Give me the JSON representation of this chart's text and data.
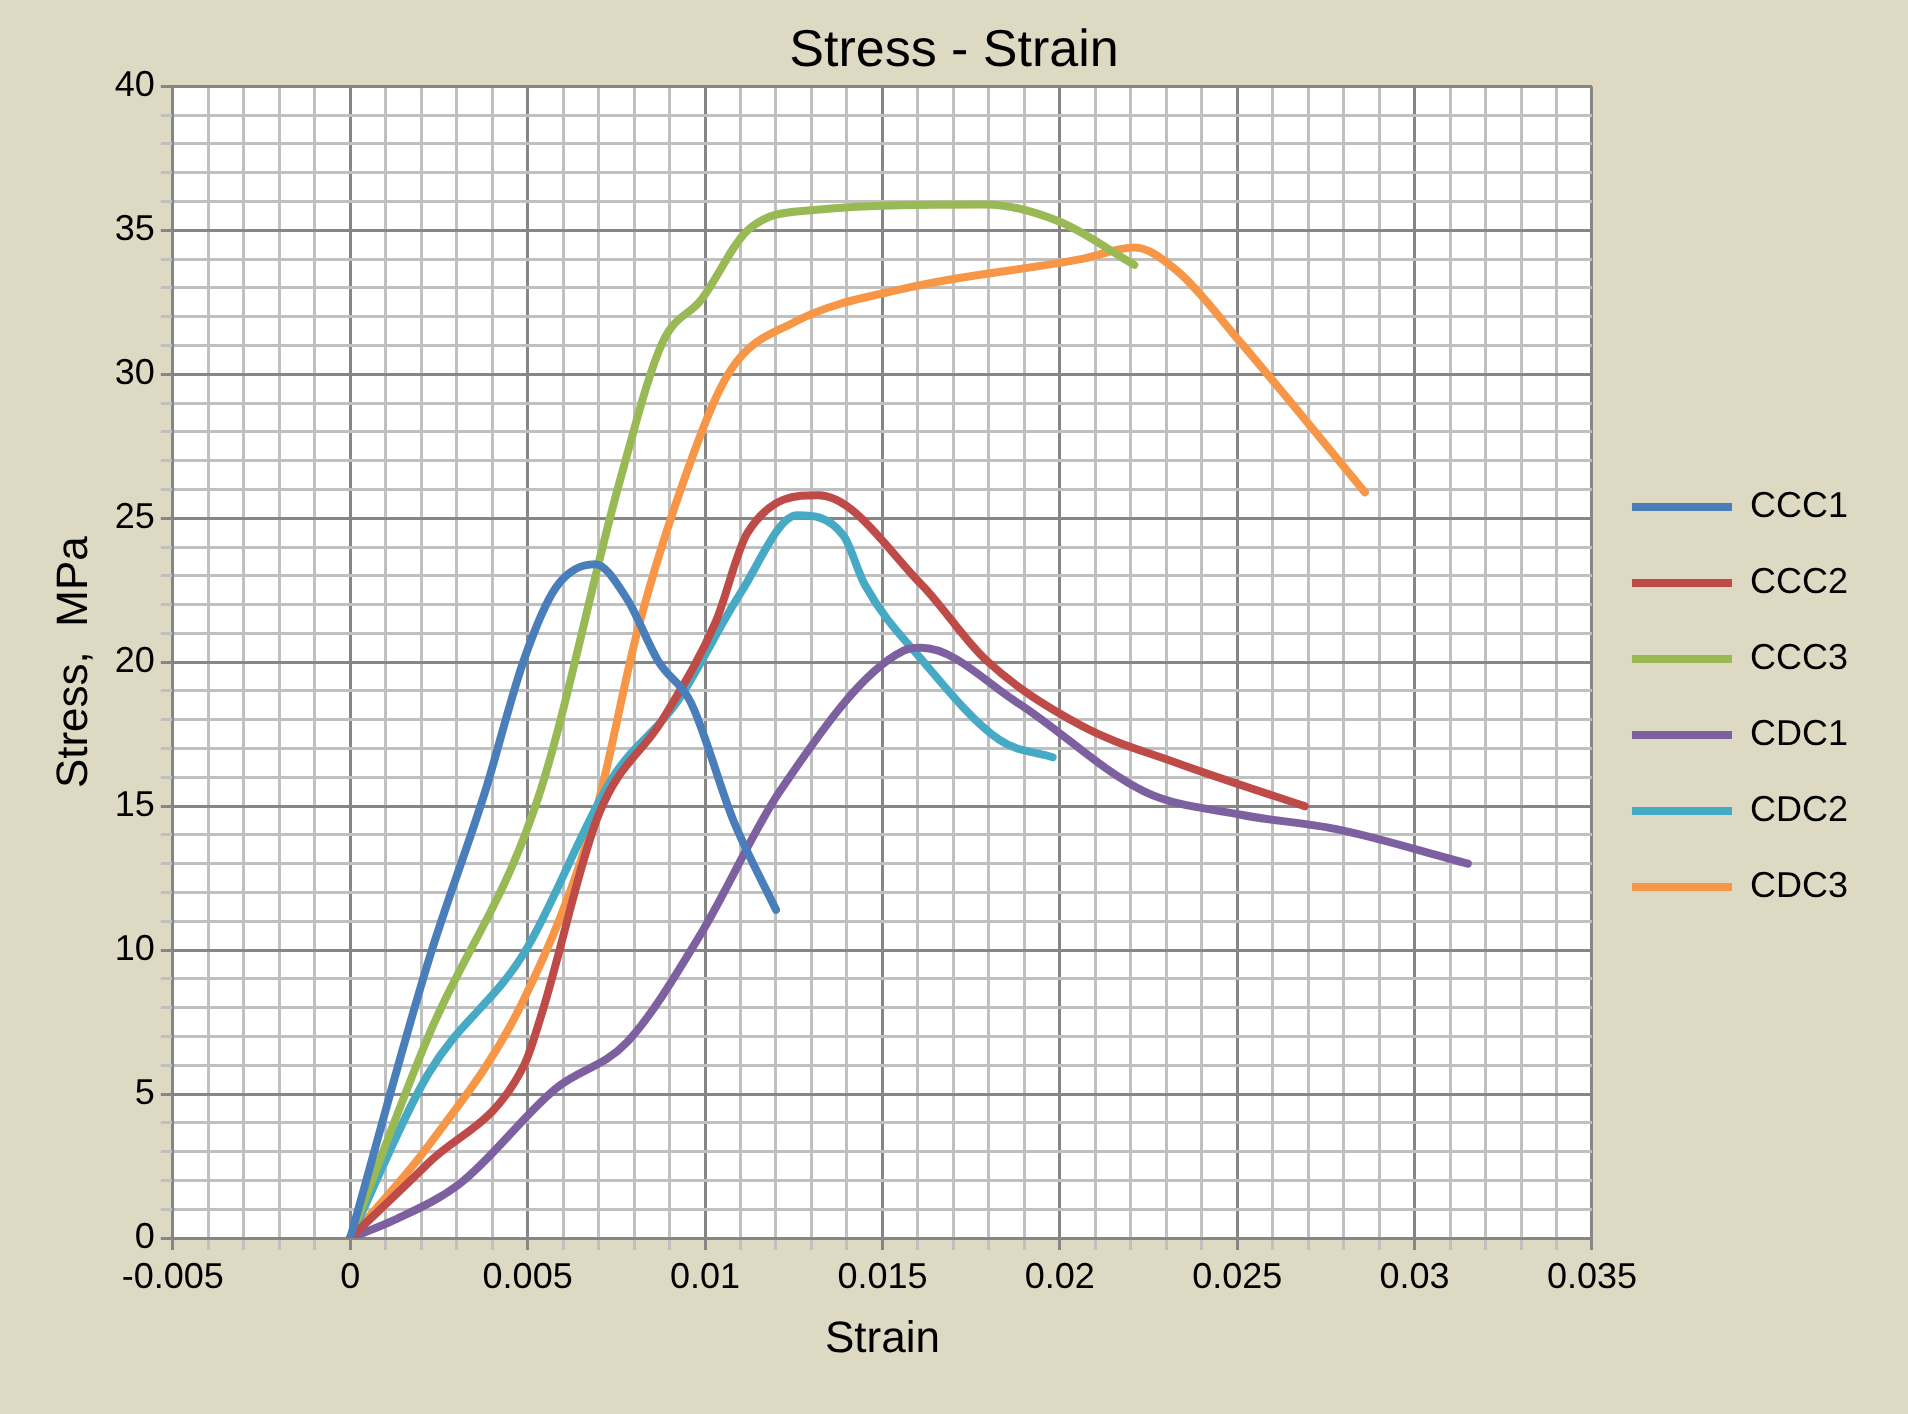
{
  "chart_data": {
    "type": "line",
    "title": "Stress - Strain",
    "xlabel": "Strain",
    "ylabel": "Stress,  MPa",
    "legend": "right",
    "grid": true,
    "marker": "none",
    "line_style": "solid",
    "xlim": [
      -0.005,
      0.035
    ],
    "ylim": [
      0,
      40
    ],
    "xticks": [
      -0.005,
      {
        "value": -0.004,
        "label": null
      },
      {
        "value": -0.003,
        "label": null
      },
      {
        "value": -0.002,
        "label": null
      },
      {
        "value": -0.001,
        "label": null
      },
      0,
      {
        "value": 0.001,
        "label": null
      },
      {
        "value": 0.002,
        "label": null
      },
      {
        "value": 0.003,
        "label": null
      },
      {
        "value": 0.004,
        "label": null
      },
      0.005,
      {
        "value": 0.006,
        "label": null
      },
      {
        "value": 0.007,
        "label": null
      },
      {
        "value": 0.008,
        "label": null
      },
      {
        "value": 0.009,
        "label": null
      },
      0.01,
      {
        "value": 0.011,
        "label": null
      },
      {
        "value": 0.012,
        "label": null
      },
      {
        "value": 0.013,
        "label": null
      },
      {
        "value": 0.014,
        "label": null
      },
      0.015,
      {
        "value": 0.016,
        "label": null
      },
      {
        "value": 0.017,
        "label": null
      },
      {
        "value": 0.018,
        "label": null
      },
      {
        "value": 0.019,
        "label": null
      },
      0.02,
      {
        "value": 0.021,
        "label": null
      },
      {
        "value": 0.022,
        "label": null
      },
      {
        "value": 0.023,
        "label": null
      },
      {
        "value": 0.024,
        "label": null
      },
      0.025,
      {
        "value": 0.026,
        "label": null
      },
      {
        "value": 0.027,
        "label": null
      },
      {
        "value": 0.028,
        "label": null
      },
      {
        "value": 0.029,
        "label": null
      },
      0.03,
      {
        "value": 0.031,
        "label": null
      },
      {
        "value": 0.032,
        "label": null
      },
      {
        "value": 0.033,
        "label": null
      },
      {
        "value": 0.034,
        "label": null
      },
      0.035
    ],
    "yticks": [
      0,
      {
        "value": 1,
        "label": null
      },
      {
        "value": 2,
        "label": null
      },
      {
        "value": 3,
        "label": null
      },
      {
        "value": 4,
        "label": null
      },
      5,
      {
        "value": 6,
        "label": null
      },
      {
        "value": 7,
        "label": null
      },
      {
        "value": 8,
        "label": null
      },
      {
        "value": 9,
        "label": null
      },
      10,
      {
        "value": 11,
        "label": null
      },
      {
        "value": 12,
        "label": null
      },
      {
        "value": 13,
        "label": null
      },
      {
        "value": 14,
        "label": null
      },
      15,
      {
        "value": 16,
        "label": null
      },
      {
        "value": 17,
        "label": null
      },
      {
        "value": 18,
        "label": null
      },
      {
        "value": 19,
        "label": null
      },
      20,
      {
        "value": 21,
        "label": null
      },
      {
        "value": 22,
        "label": null
      },
      {
        "value": 23,
        "label": null
      },
      {
        "value": 24,
        "label": null
      },
      25,
      {
        "value": 26,
        "label": null
      },
      {
        "value": 27,
        "label": null
      },
      {
        "value": 28,
        "label": null
      },
      {
        "value": 29,
        "label": null
      },
      30,
      {
        "value": 31,
        "label": null
      },
      {
        "value": 32,
        "label": null
      },
      {
        "value": 33,
        "label": null
      },
      {
        "value": 34,
        "label": null
      },
      35,
      {
        "value": 36,
        "label": null
      },
      {
        "value": 37,
        "label": null
      },
      {
        "value": 38,
        "label": null
      },
      {
        "value": 39,
        "label": null
      },
      40
    ],
    "series": [
      {
        "name": "CCC1",
        "color": "#4a7ebb",
        "x": [
          0,
          0.0022,
          0.0038,
          0.0049,
          0.0058,
          0.0069,
          0.0078,
          0.0087,
          0.0096,
          0.0108,
          0.012
        ],
        "values": [
          0,
          9.6,
          15.5,
          20.1,
          22.6,
          23.4,
          22.2,
          20.0,
          18.6,
          14.5,
          11.4
        ]
      },
      {
        "name": "CCC2",
        "color": "#be4b48",
        "x": [
          0,
          0.0022,
          0.0049,
          0.0054,
          0.007,
          0.0088,
          0.0103,
          0.0112,
          0.0132,
          0.0161,
          0.0179,
          0.0206,
          0.0233,
          0.0269
        ],
        "values": [
          0,
          2.6,
          6.0,
          7.8,
          14.7,
          18.0,
          21.4,
          24.5,
          25.8,
          22.7,
          20.1,
          17.8,
          16.5,
          15.0
        ]
      },
      {
        "name": "CCC3",
        "color": "#98b954",
        "x": [
          0,
          0.0022,
          0.0053,
          0.0076,
          0.0088,
          0.0099,
          0.0112,
          0.013,
          0.0179,
          0.02,
          0.0221
        ],
        "values": [
          0,
          7.0,
          15.3,
          26.3,
          31.1,
          32.6,
          35.0,
          35.7,
          35.9,
          35.3,
          33.8
        ]
      },
      {
        "name": "CDC1",
        "color": "#7d60a0",
        "x": [
          0,
          0.0012,
          0.0031,
          0.0058,
          0.0078,
          0.0099,
          0.0121,
          0.0156,
          0.0161,
          0.0188,
          0.0224,
          0.0251,
          0.0278,
          0.0315
        ],
        "values": [
          0,
          0.6,
          1.9,
          5.2,
          6.8,
          10.6,
          15.5,
          20.4,
          20.5,
          18.6,
          15.5,
          14.7,
          14.2,
          13.0
        ]
      },
      {
        "name": "CDC2",
        "color": "#46aac5",
        "x": [
          0,
          0.0022,
          0.0049,
          0.0074,
          0.0092,
          0.011,
          0.0126,
          0.0139,
          0.0145,
          0.0161,
          0.0183,
          0.0198
        ],
        "values": [
          0,
          5.7,
          9.9,
          16.0,
          18.6,
          22.4,
          25.1,
          24.4,
          22.7,
          20.1,
          17.3,
          16.7
        ]
      },
      {
        "name": "CDC3",
        "color": "#f79646",
        "x": [
          0,
          0.0022,
          0.0049,
          0.0069,
          0.0081,
          0.0094,
          0.0107,
          0.0125,
          0.0157,
          0.0206,
          0.0221,
          0.0233,
          0.0251,
          0.0286
        ],
        "values": [
          0,
          3.2,
          8.3,
          14.7,
          21.1,
          26.3,
          30.1,
          31.8,
          33.0,
          34.0,
          34.4,
          33.6,
          31.1,
          25.9
        ]
      }
    ]
  }
}
